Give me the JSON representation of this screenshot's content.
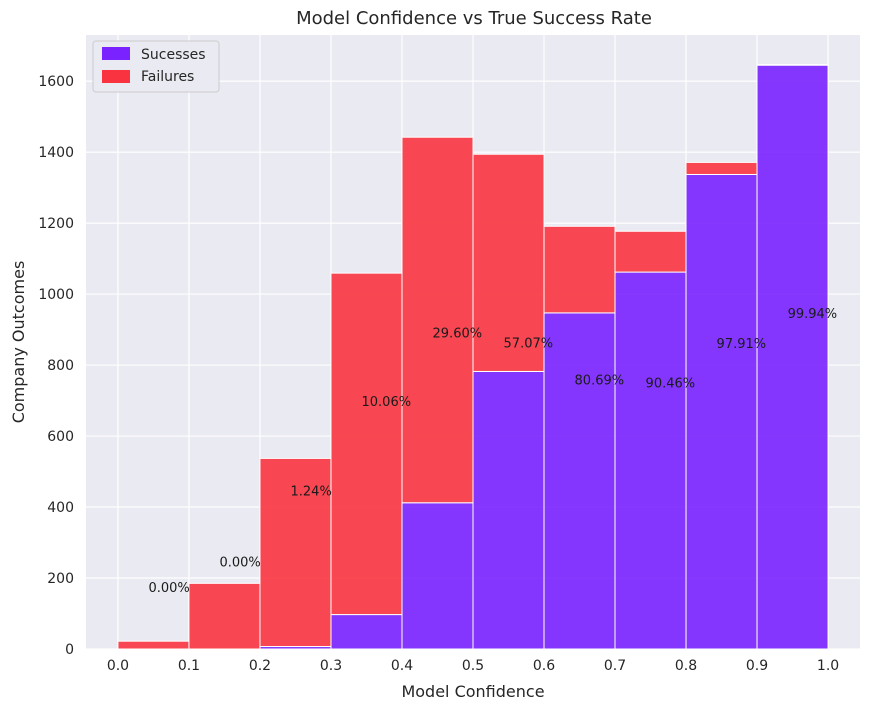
{
  "chart_data": {
    "type": "bar",
    "stacked": true,
    "title": "Model Confidence vs True Success Rate",
    "xlabel": "Model Confidence",
    "ylabel": "Company Outcomes",
    "xlim": [
      -0.045,
      1.045
    ],
    "ylim": [
      0,
      1730
    ],
    "xticks": [
      0.0,
      0.1,
      0.2,
      0.3,
      0.4,
      0.5,
      0.6,
      0.7,
      0.8,
      0.9,
      1.0
    ],
    "xtick_labels": [
      "0.0",
      "0.1",
      "0.2",
      "0.3",
      "0.4",
      "0.5",
      "0.6",
      "0.7",
      "0.8",
      "0.9",
      "1.0"
    ],
    "yticks": [
      0,
      200,
      400,
      600,
      800,
      1000,
      1200,
      1400,
      1600
    ],
    "ytick_labels": [
      "0",
      "200",
      "400",
      "600",
      "800",
      "1000",
      "1200",
      "1400",
      "1600"
    ],
    "bins": [
      [
        0.0,
        0.1
      ],
      [
        0.1,
        0.2
      ],
      [
        0.2,
        0.3
      ],
      [
        0.3,
        0.4
      ],
      [
        0.4,
        0.5
      ],
      [
        0.5,
        0.6
      ],
      [
        0.6,
        0.7
      ],
      [
        0.7,
        0.8
      ],
      [
        0.8,
        0.9
      ],
      [
        0.9,
        1.0
      ]
    ],
    "series": [
      {
        "name": "Sucesses",
        "color": "#7a22ff",
        "values": [
          0,
          0,
          7,
          97,
          412,
          782,
          947,
          1062,
          1337,
          1645
        ]
      },
      {
        "name": "Failures",
        "color": "#f93440",
        "values": [
          22,
          185,
          530,
          962,
          1030,
          612,
          244,
          115,
          34,
          2
        ]
      }
    ],
    "annotations": [
      {
        "text": "0.00%",
        "x": 0.043,
        "y": 160
      },
      {
        "text": "0.00%",
        "x": 0.143,
        "y": 232
      },
      {
        "text": "1.24%",
        "x": 0.243,
        "y": 432
      },
      {
        "text": "10.06%",
        "x": 0.343,
        "y": 685
      },
      {
        "text": "29.60%",
        "x": 0.443,
        "y": 877
      },
      {
        "text": "57.07%",
        "x": 0.543,
        "y": 850
      },
      {
        "text": "80.69%",
        "x": 0.643,
        "y": 745
      },
      {
        "text": "90.46%",
        "x": 0.743,
        "y": 737
      },
      {
        "text": "97.91%",
        "x": 0.843,
        "y": 848
      },
      {
        "text": "99.94%",
        "x": 0.943,
        "y": 933
      }
    ],
    "grid": true,
    "legend_position": "top-left",
    "background_color": "#eaeaf2",
    "grid_color": "#ffffff",
    "bar_edge_color": "#ffffff"
  }
}
